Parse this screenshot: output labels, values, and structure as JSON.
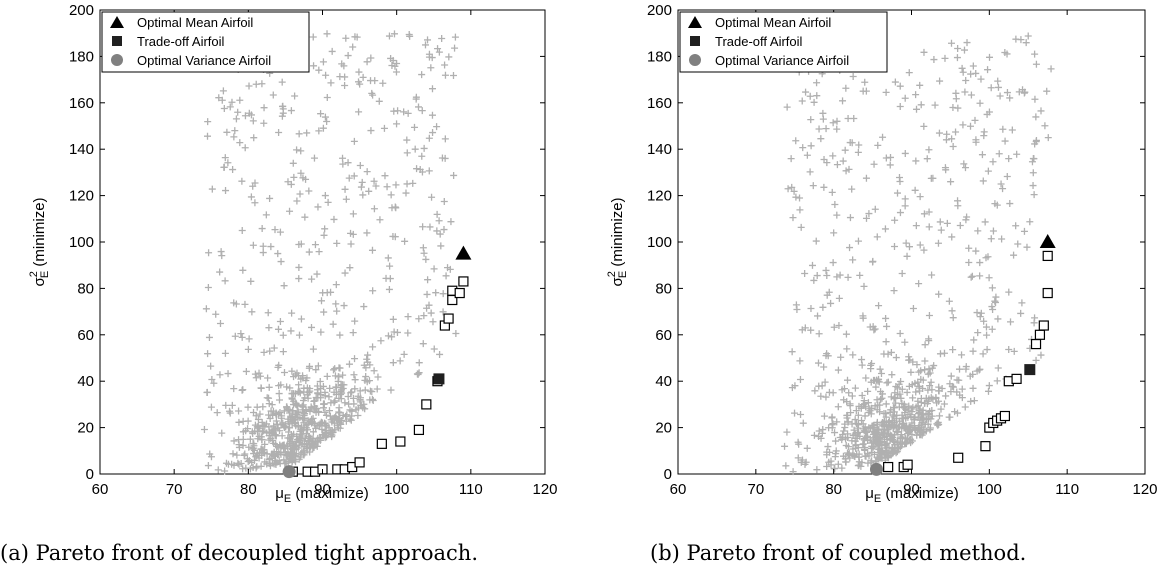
{
  "chart_data": [
    {
      "type": "scatter",
      "caption": "(a) Pareto front of decoupled tight approach.",
      "xlabel": "μ",
      "xlabel_sub": "E",
      "xlabel_tail": " (maximize)",
      "ylabel": "σ",
      "ylabel_sup": "2",
      "ylabel_sub": "E",
      "ylabel_tail": " (minimize)",
      "xlim": [
        60,
        120
      ],
      "ylim": [
        0,
        200
      ],
      "xticks": [
        60,
        70,
        80,
        90,
        100,
        110,
        120
      ],
      "yticks": [
        0,
        20,
        40,
        60,
        80,
        100,
        120,
        140,
        160,
        180,
        200
      ],
      "legend_position": "top-left",
      "legend": [
        "Optimal Mean Airfoil",
        "Trade-off Airfoil",
        "Optimal Variance Airfoil"
      ],
      "colors": {
        "cloud": "#b0b0b0",
        "triangle": "#000000",
        "square": "#202020",
        "circle": "#808080"
      },
      "pareto_front": [
        [
          86,
          1
        ],
        [
          88,
          1
        ],
        [
          89,
          1
        ],
        [
          90,
          2
        ],
        [
          92,
          2
        ],
        [
          93,
          2
        ],
        [
          94,
          3
        ],
        [
          95,
          5
        ],
        [
          98,
          13
        ],
        [
          100.5,
          14
        ],
        [
          103,
          19
        ],
        [
          104,
          30
        ],
        [
          105.5,
          40
        ],
        [
          106.5,
          64
        ],
        [
          107,
          67
        ],
        [
          107.5,
          75
        ],
        [
          107.5,
          79
        ],
        [
          108.5,
          78
        ],
        [
          109,
          83
        ]
      ],
      "optimal_mean": [
        109,
        95
      ],
      "trade_off": [
        105.7,
        41
      ],
      "optimal_variance": [
        85.5,
        1
      ],
      "cloud_seed": 11
    },
    {
      "type": "scatter",
      "caption": "(b) Pareto front of coupled method.",
      "xlabel": "μ",
      "xlabel_sub": "E",
      "xlabel_tail": " (maximize)",
      "ylabel": "σ",
      "ylabel_sup": "2",
      "ylabel_sub": "E",
      "ylabel_tail": " (minimize)",
      "xlim": [
        60,
        120
      ],
      "ylim": [
        0,
        200
      ],
      "xticks": [
        60,
        70,
        80,
        90,
        100,
        110,
        120
      ],
      "yticks": [
        0,
        20,
        40,
        60,
        80,
        100,
        120,
        140,
        160,
        180,
        200
      ],
      "legend_position": "top-left",
      "legend": [
        "Optimal Mean Airfoil",
        "Trade-off Airfoil",
        "Optimal Variance Airfoil"
      ],
      "colors": {
        "cloud": "#b0b0b0",
        "triangle": "#000000",
        "square": "#202020",
        "circle": "#808080"
      },
      "pareto_front": [
        [
          87,
          3
        ],
        [
          89,
          3
        ],
        [
          89.5,
          4
        ],
        [
          96,
          7
        ],
        [
          99.5,
          12
        ],
        [
          100,
          20
        ],
        [
          100.5,
          22
        ],
        [
          101,
          23
        ],
        [
          101.5,
          24
        ],
        [
          102,
          25
        ],
        [
          102.5,
          40
        ],
        [
          103.5,
          41
        ],
        [
          106,
          56
        ],
        [
          106.5,
          60
        ],
        [
          107,
          64
        ],
        [
          107.5,
          78
        ],
        [
          107.5,
          94
        ]
      ],
      "optimal_mean": [
        107.5,
        100
      ],
      "trade_off": [
        105.2,
        45
      ],
      "optimal_variance": [
        85.5,
        2
      ],
      "cloud_seed": 29
    }
  ]
}
